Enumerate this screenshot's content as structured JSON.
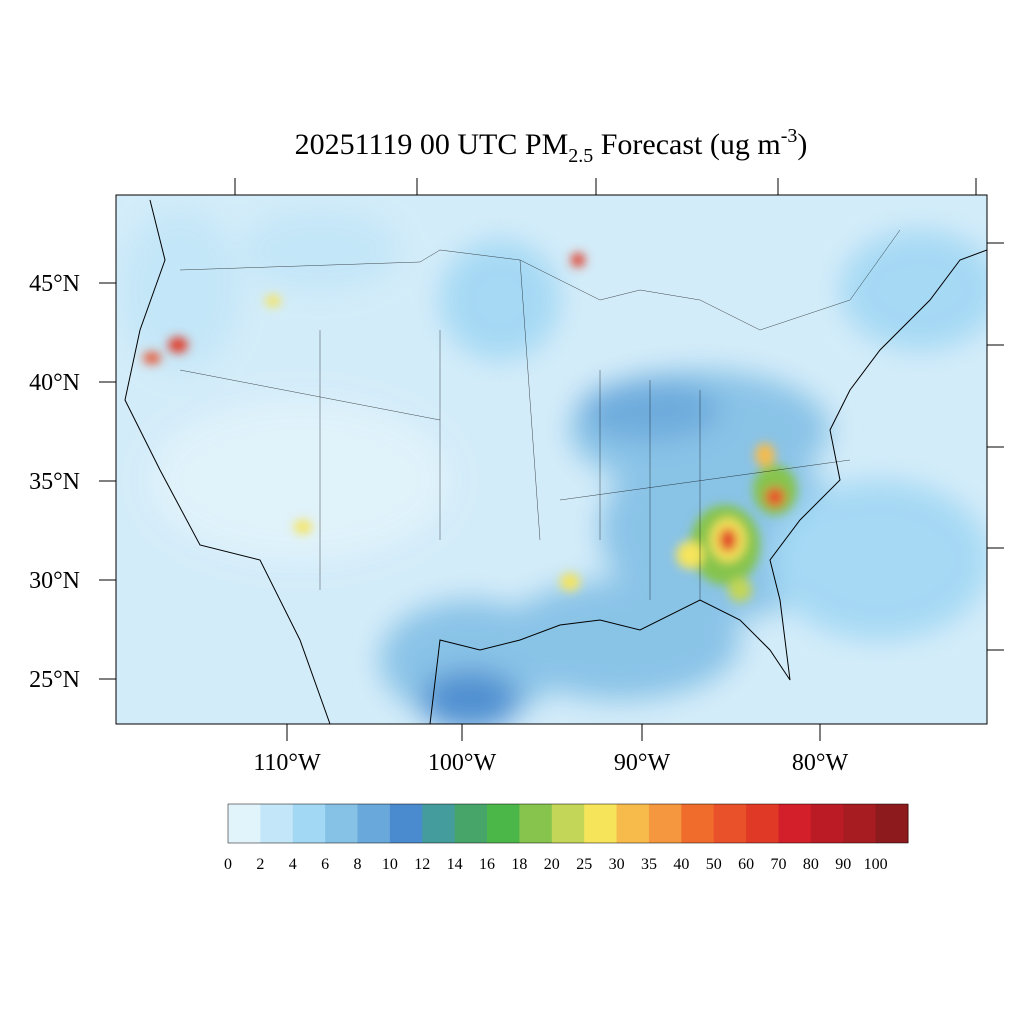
{
  "title": {
    "main": "20251119 00 UTC PM",
    "subscript": "2.5",
    "middle": " Forecast (ug m",
    "superscript": "-3",
    "end": ")"
  },
  "lat_labels": [
    "45°N",
    "40°N",
    "35°N",
    "30°N",
    "25°N"
  ],
  "lon_labels": [
    "110°W",
    "100°W",
    "90°W",
    "80°W"
  ],
  "colorbar": {
    "levels": [
      0,
      2,
      4,
      6,
      8,
      10,
      12,
      14,
      16,
      18,
      20,
      25,
      30,
      35,
      40,
      50,
      60,
      70,
      80,
      90,
      100
    ],
    "colors": [
      "#e1f3fb",
      "#c3e6f8",
      "#a3d8f4",
      "#86c1e6",
      "#69a8db",
      "#4a8bcf",
      "#459c9c",
      "#47a56a",
      "#4cb749",
      "#86c44e",
      "#c3d657",
      "#f6e45b",
      "#f7bb4c",
      "#f5973f",
      "#f06c2c",
      "#e9512a",
      "#e03a26",
      "#d31f2a",
      "#bb1b25",
      "#a71c21",
      "#8d1a1c"
    ]
  }
}
